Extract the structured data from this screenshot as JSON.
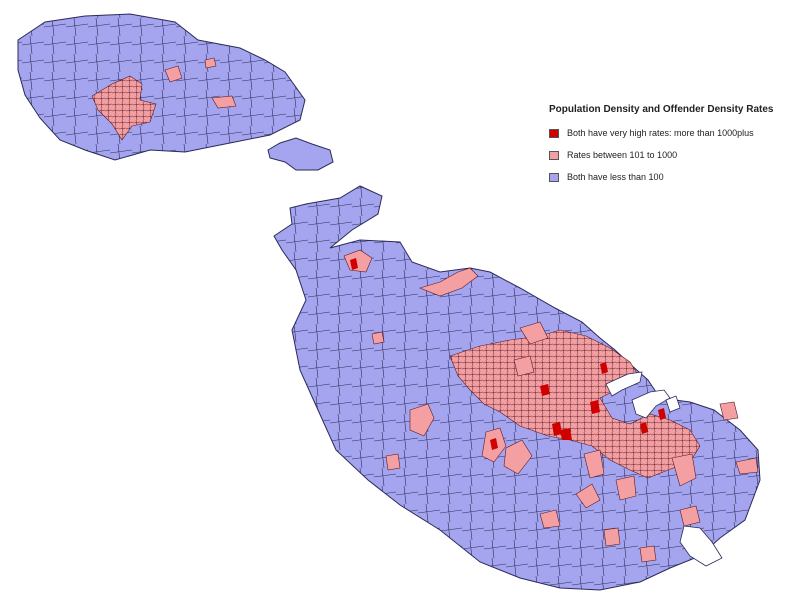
{
  "legend": {
    "title": "Population Density and Offender Density Rates",
    "items": [
      {
        "label": "Both have very high rates: more than 1000plus",
        "color": "#d00000",
        "class": "very-high"
      },
      {
        "label": "Rates between 101 to 1000",
        "color": "#f4a0a2",
        "class": "medium"
      },
      {
        "label": "Both have less than 100",
        "color": "#a5a5ef",
        "class": "low"
      }
    ]
  },
  "colors": {
    "land_low": "#a5a5ef",
    "land_medium": "#f4a0a2",
    "land_high": "#d00000",
    "boundary": "#2a2a5a",
    "water": "#ffffff"
  }
}
